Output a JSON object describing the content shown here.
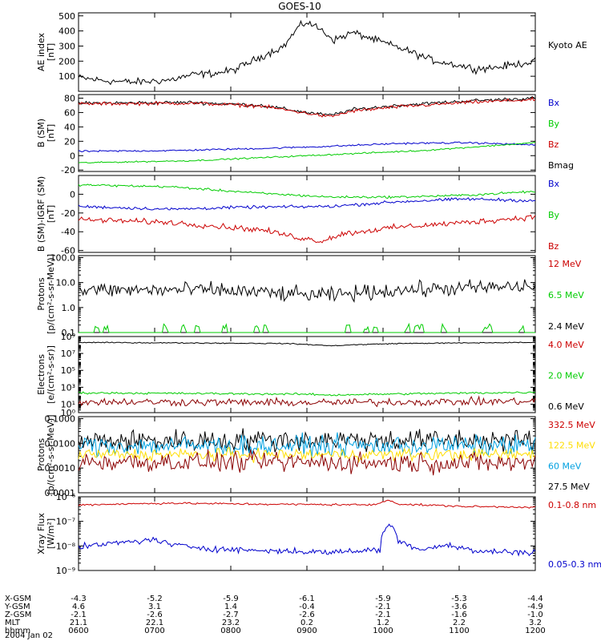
{
  "chart_data": {
    "title": "GOES-10",
    "time_range": [
      "0600",
      "1200"
    ],
    "panels": [
      {
        "id": "ae",
        "type": "line",
        "ylabel": [
          "AE index",
          "[nT]"
        ],
        "ylim": [
          0,
          520
        ],
        "scale": "linear",
        "ticks": [
          100,
          200,
          300,
          400,
          500
        ],
        "tick_labels": [
          "100",
          "200",
          "300",
          "400",
          "500"
        ],
        "legend": [
          {
            "text": "Kyoto AE",
            "color": "#000000"
          }
        ],
        "series": [
          {
            "name": "Kyoto AE",
            "color": "#000000",
            "noise": 12,
            "keys": [
              [
                0,
                90
              ],
              [
                0.06,
                70
              ],
              [
                0.12,
                60
              ],
              [
                0.2,
                75
              ],
              [
                0.25,
                110
              ],
              [
                0.3,
                120
              ],
              [
                0.34,
                140
              ],
              [
                0.4,
                230
              ],
              [
                0.45,
                300
              ],
              [
                0.48,
                420
              ],
              [
                0.5,
                460
              ],
              [
                0.53,
                410
              ],
              [
                0.56,
                340
              ],
              [
                0.6,
                390
              ],
              [
                0.64,
                350
              ],
              [
                0.68,
                310
              ],
              [
                0.72,
                270
              ],
              [
                0.77,
                210
              ],
              [
                0.82,
                180
              ],
              [
                0.87,
                150
              ],
              [
                0.92,
                160
              ],
              [
                0.96,
                180
              ],
              [
                1,
                200
              ]
            ]
          }
        ]
      },
      {
        "id": "bsm",
        "type": "line",
        "ylabel": [
          "B (SM)",
          "[nT]"
        ],
        "ylim": [
          -22,
          85
        ],
        "scale": "linear",
        "ticks": [
          -20,
          0,
          20,
          40,
          60,
          80
        ],
        "tick_labels": [
          "-20",
          "0",
          "20",
          "40",
          "60",
          "80"
        ],
        "legend": [
          {
            "text": "Bx",
            "color": "#0000cc"
          },
          {
            "text": "By",
            "color": "#00cc00"
          },
          {
            "text": "Bz",
            "color": "#cc0000"
          },
          {
            "text": "Bmag",
            "color": "#000000"
          }
        ],
        "series": [
          {
            "name": "Bmag",
            "color": "#000000",
            "noise": 1.2,
            "keys": [
              [
                0,
                73
              ],
              [
                0.25,
                74
              ],
              [
                0.4,
                70
              ],
              [
                0.5,
                60
              ],
              [
                0.55,
                56
              ],
              [
                0.6,
                64
              ],
              [
                0.7,
                70
              ],
              [
                0.85,
                76
              ],
              [
                1,
                80
              ]
            ]
          },
          {
            "name": "Bz",
            "color": "#cc0000",
            "noise": 1.2,
            "keys": [
              [
                0,
                72
              ],
              [
                0.25,
                73
              ],
              [
                0.4,
                69
              ],
              [
                0.5,
                59
              ],
              [
                0.55,
                54
              ],
              [
                0.6,
                62
              ],
              [
                0.7,
                68
              ],
              [
                0.85,
                74
              ],
              [
                1,
                78
              ]
            ]
          },
          {
            "name": "Bx",
            "color": "#0000cc",
            "noise": 0.6,
            "keys": [
              [
                0,
                6
              ],
              [
                0.2,
                7
              ],
              [
                0.4,
                10
              ],
              [
                0.55,
                13
              ],
              [
                0.7,
                17
              ],
              [
                0.85,
                18
              ],
              [
                1,
                15
              ]
            ]
          },
          {
            "name": "By",
            "color": "#00cc00",
            "noise": 0.5,
            "keys": [
              [
                0,
                -10
              ],
              [
                0.25,
                -7
              ],
              [
                0.5,
                0
              ],
              [
                0.75,
                7
              ],
              [
                1,
                18
              ]
            ]
          }
        ]
      },
      {
        "id": "bdiff",
        "type": "line",
        "ylabel": [
          "B (SM)-IGRF (SM)",
          "[nT]"
        ],
        "ylim": [
          -62,
          20
        ],
        "scale": "linear",
        "ticks": [
          -60,
          -40,
          -20,
          0
        ],
        "tick_labels": [
          "-60",
          "-40",
          "-20",
          "0"
        ],
        "legend": [
          {
            "text": "Bx",
            "color": "#0000cc"
          },
          {
            "text": "By",
            "color": "#00cc00"
          },
          {
            "text": "Bz",
            "color": "#cc0000"
          }
        ],
        "series": [
          {
            "name": "By",
            "color": "#00cc00",
            "noise": 0.6,
            "keys": [
              [
                0,
                10
              ],
              [
                0.2,
                8
              ],
              [
                0.4,
                1
              ],
              [
                0.55,
                -3
              ],
              [
                0.7,
                -3
              ],
              [
                0.85,
                -1
              ],
              [
                1,
                3
              ]
            ]
          },
          {
            "name": "Bx",
            "color": "#0000cc",
            "noise": 0.8,
            "keys": [
              [
                0,
                -13
              ],
              [
                0.2,
                -16
              ],
              [
                0.35,
                -14
              ],
              [
                0.55,
                -13
              ],
              [
                0.7,
                -8
              ],
              [
                0.85,
                -5
              ],
              [
                1,
                -7
              ]
            ]
          },
          {
            "name": "Bz",
            "color": "#cc0000",
            "noise": 1.5,
            "keys": [
              [
                0,
                -27
              ],
              [
                0.2,
                -30
              ],
              [
                0.4,
                -38
              ],
              [
                0.48,
                -46
              ],
              [
                0.53,
                -50
              ],
              [
                0.58,
                -42
              ],
              [
                0.7,
                -35
              ],
              [
                0.85,
                -30
              ],
              [
                1,
                -24
              ]
            ]
          }
        ]
      },
      {
        "id": "protons1",
        "type": "line",
        "ylabel": [
          "Protons",
          "[p/(cm²-s-sr-MeV)]"
        ],
        "ylim": [
          0.1,
          120
        ],
        "scale": "log",
        "ticks": [
          0.1,
          1,
          10,
          100
        ],
        "tick_labels": [
          "0.1",
          "1.0",
          "10.0",
          "100.0"
        ],
        "legend": [
          {
            "text": "12 MeV",
            "color": "#cc0000"
          },
          {
            "text": "6.5 MeV",
            "color": "#00cc00"
          },
          {
            "text": "2.4 MeV",
            "color": "#000000"
          }
        ],
        "series": [
          {
            "name": "2.4 MeV",
            "color": "#000000",
            "lognoise": 0.15,
            "keys": [
              [
                0,
                5
              ],
              [
                0.3,
                5
              ],
              [
                0.45,
                3.5
              ],
              [
                0.55,
                3
              ],
              [
                0.7,
                5
              ],
              [
                0.85,
                6
              ],
              [
                1,
                7
              ]
            ]
          },
          {
            "name": "6.5 MeV",
            "color": "#00cc00",
            "spikes": true,
            "keys": [
              [
                0,
                0.1
              ],
              [
                1,
                0.1
              ]
            ]
          }
        ]
      },
      {
        "id": "electrons",
        "type": "line",
        "ylabel": [
          "Electrons",
          "[e/(cm²-s-sr)]"
        ],
        "ylim": [
          1,
          1000000000
        ],
        "scale": "log",
        "ticks": [
          1,
          10,
          1000,
          100000,
          10000000,
          1000000000
        ],
        "tick_labels": [
          "10⁰",
          "10¹",
          "10³",
          "10⁵",
          "10⁷",
          "10⁹"
        ],
        "legend": [
          {
            "text": "4.0 MeV",
            "color": "#cc0000"
          },
          {
            "text": "2.0 MeV",
            "color": "#00cc00"
          },
          {
            "text": "0.6 MeV",
            "color": "#000000"
          }
        ],
        "series": [
          {
            "name": "0.6 MeV",
            "color": "#000000",
            "lognoise": 0.03,
            "keys": [
              [
                0,
                200000000
              ],
              [
                0.45,
                150000000
              ],
              [
                0.55,
                80000000
              ],
              [
                0.7,
                150000000
              ],
              [
                1,
                200000000
              ]
            ]
          },
          {
            "name": "2.0 MeV",
            "color": "#00cc00",
            "lognoise": 0.06,
            "keys": [
              [
                0,
                220
              ],
              [
                0.5,
                150
              ],
              [
                0.55,
                120
              ],
              [
                1,
                250
              ]
            ]
          },
          {
            "name": "4.0 MeV",
            "color": "#8b0000",
            "lognoise": 0.22,
            "keys": [
              [
                0,
                20
              ],
              [
                0.5,
                15
              ],
              [
                1,
                22
              ]
            ]
          }
        ]
      },
      {
        "id": "protons2",
        "type": "line",
        "ylabel": [
          "Protons",
          "[p/(cm²-s-sr-MeV)]"
        ],
        "ylim": [
          0.0001,
          0.12
        ],
        "scale": "log",
        "ticks": [
          0.0001,
          0.001,
          0.01,
          0.1
        ],
        "tick_labels": [
          "0.0001",
          "0.0010",
          "0.0100",
          "0.1000"
        ],
        "legend": [
          {
            "text": "332.5 MeV",
            "color": "#cc0000"
          },
          {
            "text": "122.5 MeV",
            "color": "#ffdd00"
          },
          {
            "text": "60 MeV",
            "color": "#00a0e0"
          },
          {
            "text": "27.5 MeV",
            "color": "#000000"
          }
        ],
        "series": [
          {
            "name": "27.5 MeV",
            "color": "#000000",
            "lognoise": 0.22,
            "keys": [
              [
                0,
                0.012
              ],
              [
                0.5,
                0.014
              ],
              [
                1,
                0.013
              ]
            ]
          },
          {
            "name": "60 MeV",
            "color": "#00a0e0",
            "lognoise": 0.2,
            "keys": [
              [
                0,
                0.008
              ],
              [
                0.5,
                0.008
              ],
              [
                1,
                0.008
              ]
            ]
          },
          {
            "name": "122.5 MeV",
            "color": "#ffdd00",
            "lognoise": 0.12,
            "keys": [
              [
                0,
                0.0035
              ],
              [
                1,
                0.0035
              ]
            ]
          },
          {
            "name": "332.5 MeV",
            "color": "#8b0000",
            "lognoise": 0.2,
            "keys": [
              [
                0,
                0.0018
              ],
              [
                1,
                0.0016
              ]
            ]
          }
        ]
      },
      {
        "id": "xray",
        "type": "line",
        "ylabel": [
          "Xray Flux",
          "[W/m²]"
        ],
        "ylim": [
          1e-09,
          1e-06
        ],
        "scale": "log",
        "ticks": [
          1e-09,
          1e-08,
          1e-07,
          1e-06
        ],
        "tick_labels": [
          "10⁻⁹",
          "10⁻⁸",
          "10⁻⁷",
          "10⁻⁶"
        ],
        "legend": [
          {
            "text": "0.1-0.8 nm",
            "color": "#cc0000"
          },
          {
            "text": "0.05-0.3 nm",
            "color": "#0000cc"
          }
        ],
        "series": [
          {
            "name": "0.1-0.8 nm",
            "color": "#cc0000",
            "lognoise": 0.02,
            "keys": [
              [
                0,
                4.7e-07
              ],
              [
                0.2,
                5.5e-07
              ],
              [
                0.4,
                5e-07
              ],
              [
                0.65,
                4.7e-07
              ],
              [
                0.68,
                7.5e-07
              ],
              [
                0.7,
                5e-07
              ],
              [
                0.85,
                4e-07
              ],
              [
                1,
                3.8e-07
              ]
            ]
          },
          {
            "name": "0.05-0.3 nm",
            "color": "#0000cc",
            "lognoise": 0.06,
            "keys": [
              [
                0,
                8.5e-09
              ],
              [
                0.17,
                1.8e-08
              ],
              [
                0.2,
                1.1e-08
              ],
              [
                0.3,
                7.5e-09
              ],
              [
                0.4,
                6.5e-09
              ],
              [
                0.55,
                5.5e-09
              ],
              [
                0.66,
                7e-09
              ],
              [
                0.68,
                8e-08
              ],
              [
                0.7,
                1.5e-08
              ],
              [
                0.75,
                7e-09
              ],
              [
                0.8,
                1.1e-08
              ],
              [
                0.87,
                6e-09
              ],
              [
                1,
                5.5e-09
              ]
            ]
          }
        ]
      }
    ],
    "x_axis": {
      "row_labels": [
        "X-GSM",
        "Y-GSM",
        "Z-GSM",
        "MLT",
        "hhmm"
      ],
      "columns": [
        [
          "-4.3",
          "4.6",
          "-2.1",
          "21.1",
          "0600"
        ],
        [
          "-5.2",
          "3.1",
          "-2.6",
          "22.1",
          "0700"
        ],
        [
          "-5.9",
          "1.4",
          "-2.7",
          "23.2",
          "0800"
        ],
        [
          "-6.1",
          "-0.4",
          "-2.6",
          "0.2",
          "0900"
        ],
        [
          "-5.9",
          "-2.1",
          "-2.1",
          "1.2",
          "1000"
        ],
        [
          "-5.3",
          "-3.6",
          "-1.6",
          "2.2",
          "1100"
        ],
        [
          "-4.4",
          "-4.9",
          "-1.0",
          "3.2",
          "1200"
        ]
      ],
      "date": "2004 Jan 02"
    }
  }
}
